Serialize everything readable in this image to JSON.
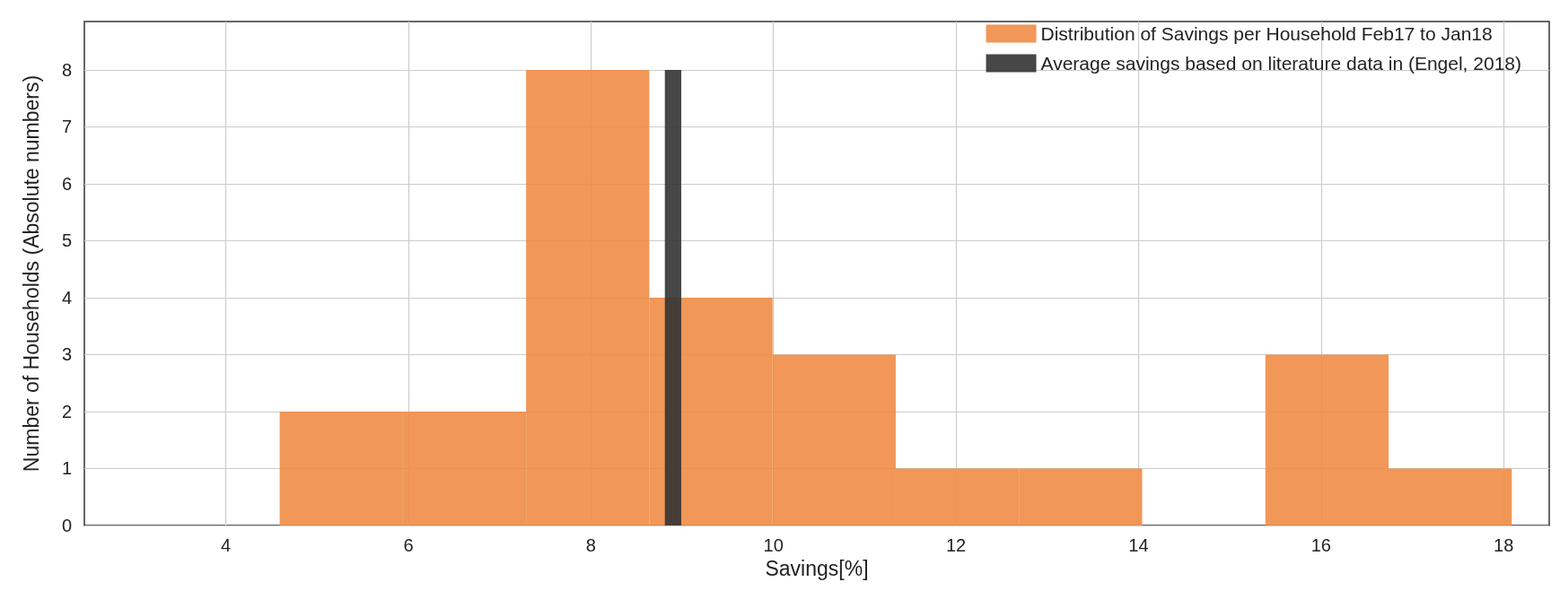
{
  "chart_data": {
    "type": "histogram",
    "xlabel": "Savings[%]",
    "ylabel": "Number of Households (Absolute numbers)",
    "bins": [
      4.59,
      5.94,
      7.29,
      8.64,
      9.99,
      11.34,
      12.69,
      14.04,
      15.39,
      16.74,
      18.09
    ],
    "series": [
      {
        "name": "Distribution of Savings per Household Feb17 to Jan18",
        "color": "#ef8c45",
        "values": [
          2,
          2,
          8,
          4,
          3,
          1,
          1,
          0,
          3,
          1
        ]
      },
      {
        "name": "Average savings based on literature data in (Engel, 2018)",
        "type": "bar",
        "color": "#333333",
        "x": [
          8.9
        ],
        "values": [
          8
        ]
      }
    ],
    "xlim": [
      2.45,
      18.5
    ],
    "xticks": [
      4,
      6,
      8,
      10,
      12,
      14,
      16,
      18
    ],
    "ylim": [
      0,
      8.85
    ],
    "yticks": [
      0,
      1,
      2,
      3,
      4,
      5,
      6,
      7,
      8
    ],
    "grid": true,
    "legend": "top right"
  }
}
